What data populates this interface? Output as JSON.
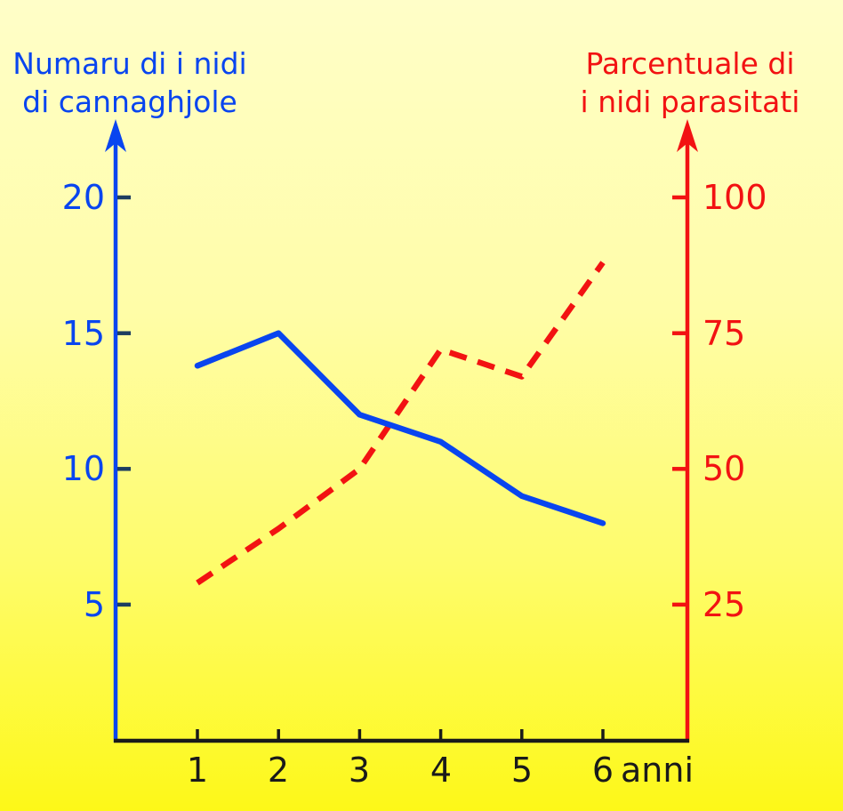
{
  "titles": {
    "left_line1": "Numaru di i nidi",
    "left_line2": "di cannaghjole",
    "right_line1": "Parcentuale di",
    "right_line2": "i nidi parasitati"
  },
  "colors": {
    "blue": "#0945ef",
    "red": "#f21212",
    "left_tick": "#1d3d60",
    "black_axis": "#1a1a1a",
    "background_top": "#fffec8",
    "background_bottom": "#fdf818"
  },
  "chart_data": {
    "type": "line",
    "x": [
      1,
      2,
      3,
      4,
      5,
      6
    ],
    "x_tick_labels": [
      "1",
      "2",
      "3",
      "4",
      "5",
      "6"
    ],
    "x_unit_label": "anni",
    "left_axis": {
      "label": "Numaru di i nidi di cannaghjole",
      "ticks": [
        "20",
        "15",
        "10",
        "5"
      ],
      "range": [
        0,
        22.8
      ],
      "color": "#0945ef"
    },
    "right_axis": {
      "label": "Parcentuale di i nidi parasitati",
      "ticks": [
        "100",
        "75",
        "50",
        "25"
      ],
      "range": [
        0,
        114
      ],
      "color": "#f21212"
    },
    "series": [
      {
        "name": "Numaru di i nidi di cannaghjole",
        "axis": "left",
        "style": "solid",
        "color": "#0945ef",
        "values": [
          13.8,
          15,
          12,
          11,
          9,
          8
        ]
      },
      {
        "name": "Parcentuale di i nidi parasitati",
        "axis": "right",
        "style": "dashed",
        "color": "#f21212",
        "values": [
          29,
          39,
          50,
          72,
          67,
          88
        ]
      }
    ],
    "grid": false,
    "legend": "none"
  }
}
